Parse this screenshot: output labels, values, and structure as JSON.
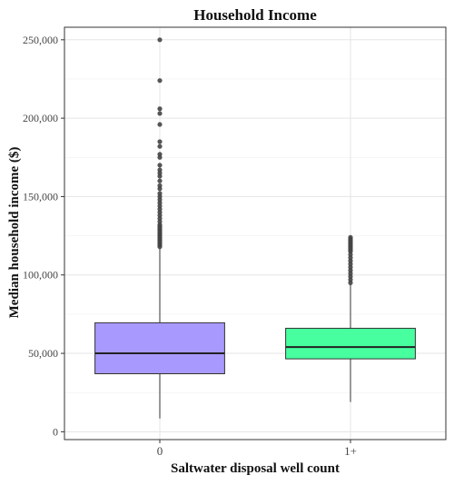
{
  "chart_data": {
    "type": "box",
    "title": "Household Income",
    "xlabel": "Saltwater disposal well count",
    "ylabel": "Median household income ($)",
    "ylim": [
      -5000,
      258000
    ],
    "yticks": [
      0,
      50000,
      100000,
      150000,
      200000,
      250000
    ],
    "ytick_labels": [
      "0",
      "50,000",
      "100,000",
      "150,000",
      "200,000",
      "250,000"
    ],
    "grid": true,
    "legend": "none",
    "categories": [
      "0",
      "1+"
    ],
    "boxes": [
      {
        "category": "0",
        "color": "#a899ff",
        "min": 8500,
        "q1": 37000,
        "median": 50000,
        "q3": 69500,
        "max": 117000,
        "outliers": [
          118000,
          119000,
          120000,
          121000,
          122000,
          123000,
          124000,
          125000,
          126000,
          127000,
          128000,
          129000,
          130000,
          131000,
          132000,
          134000,
          136000,
          138000,
          140000,
          142000,
          144000,
          146000,
          148000,
          150000,
          152000,
          155000,
          157000,
          160000,
          163000,
          165000,
          167000,
          170000,
          175000,
          177000,
          182000,
          185000,
          196000,
          203000,
          206000,
          224000,
          250000
        ]
      },
      {
        "category": "1+",
        "color": "#47ff9f",
        "min": 19000,
        "q1": 46500,
        "median": 54000,
        "q3": 66000,
        "max": 94000,
        "outliers": [
          95000,
          97000,
          99000,
          101000,
          103000,
          105000,
          107000,
          109000,
          111000,
          113000,
          115000,
          116000,
          117000,
          118000,
          119000,
          120000,
          121000,
          122000,
          123000,
          124000
        ]
      }
    ],
    "colors": {
      "border": "#333333",
      "grid": "#e5e5e5",
      "whisker": "#333333",
      "outlier": "#444444",
      "text": "#222222"
    }
  }
}
